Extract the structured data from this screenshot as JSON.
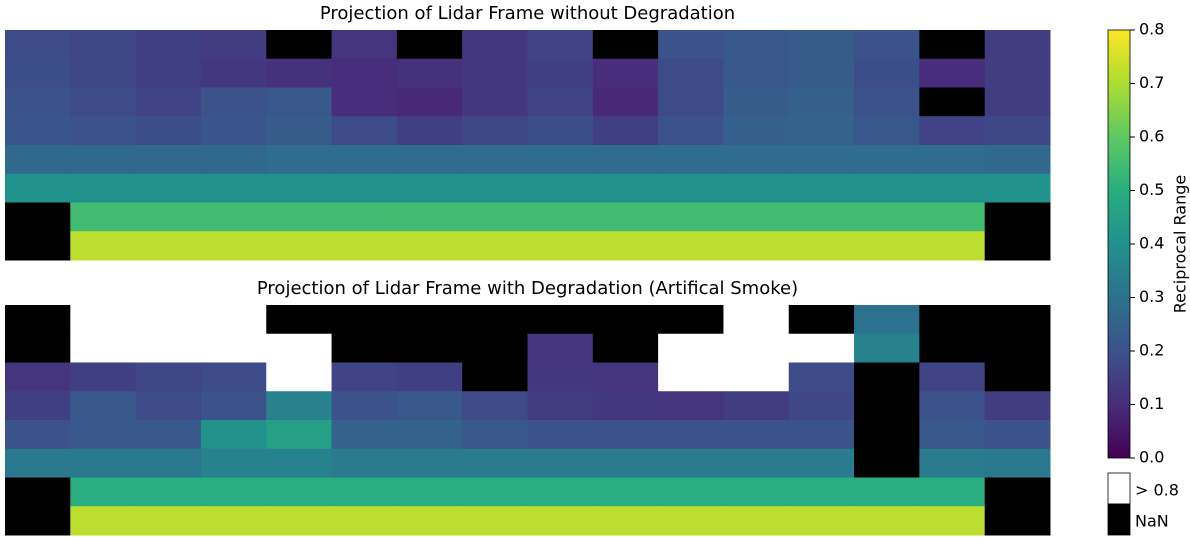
{
  "chart_data": {
    "type": "heatmap",
    "panels": [
      {
        "title": "Projection of Lidar Frame without Degradation",
        "values": [
          [
            0.18,
            0.17,
            0.15,
            0.14,
            null,
            0.12,
            null,
            0.13,
            0.16,
            null,
            0.2,
            0.22,
            0.23,
            0.2,
            null,
            0.14
          ],
          [
            0.19,
            0.17,
            0.15,
            0.13,
            0.11,
            0.1,
            0.11,
            0.13,
            0.15,
            0.1,
            0.18,
            0.22,
            0.23,
            0.19,
            0.1,
            0.14
          ],
          [
            0.2,
            0.18,
            0.16,
            0.2,
            0.22,
            0.1,
            0.09,
            0.13,
            0.16,
            0.09,
            0.18,
            0.23,
            0.24,
            0.2,
            null,
            0.14
          ],
          [
            0.21,
            0.2,
            0.19,
            0.21,
            0.23,
            0.18,
            0.15,
            0.17,
            0.19,
            0.15,
            0.2,
            0.24,
            0.25,
            0.22,
            0.16,
            0.17
          ],
          [
            0.27,
            0.27,
            0.27,
            0.27,
            0.28,
            0.28,
            0.28,
            0.28,
            0.28,
            0.28,
            0.28,
            0.28,
            0.28,
            0.28,
            0.28,
            0.27
          ],
          [
            0.4,
            0.4,
            0.4,
            0.4,
            0.4,
            0.4,
            0.4,
            0.4,
            0.4,
            0.4,
            0.4,
            0.4,
            0.4,
            0.4,
            0.4,
            0.4
          ],
          [
            null,
            0.55,
            0.55,
            0.55,
            0.55,
            0.55,
            0.55,
            0.55,
            0.55,
            0.55,
            0.55,
            0.55,
            0.55,
            0.55,
            0.55,
            null
          ],
          [
            null,
            0.72,
            0.72,
            0.72,
            0.72,
            0.72,
            0.72,
            0.72,
            0.72,
            0.72,
            0.72,
            0.72,
            0.72,
            0.72,
            0.72,
            null
          ]
        ]
      },
      {
        "title": "Projection of Lidar Frame with Degradation (Artifical Smoke)",
        "values": [
          [
            null,
            0.9,
            0.9,
            0.9,
            null,
            null,
            null,
            null,
            null,
            null,
            null,
            0.9,
            null,
            0.3,
            null,
            null
          ],
          [
            null,
            0.9,
            0.9,
            0.9,
            0.9,
            null,
            null,
            null,
            0.12,
            null,
            0.9,
            0.9,
            0.9,
            0.35,
            null,
            null
          ],
          [
            0.12,
            0.15,
            0.17,
            0.18,
            0.9,
            0.16,
            0.15,
            null,
            0.13,
            0.12,
            0.9,
            0.9,
            0.18,
            null,
            0.16,
            null
          ],
          [
            0.15,
            0.22,
            0.18,
            0.2,
            0.35,
            0.2,
            0.22,
            0.18,
            0.14,
            0.13,
            0.12,
            0.14,
            0.17,
            null,
            0.2,
            0.14
          ],
          [
            0.2,
            0.22,
            0.22,
            0.4,
            0.45,
            0.25,
            0.25,
            0.22,
            0.2,
            0.2,
            0.2,
            0.2,
            0.2,
            null,
            0.22,
            0.2
          ],
          [
            0.32,
            0.32,
            0.32,
            0.35,
            0.35,
            0.33,
            0.33,
            0.33,
            0.33,
            0.33,
            0.33,
            0.33,
            0.33,
            null,
            0.33,
            0.32
          ],
          [
            null,
            0.5,
            0.5,
            0.5,
            0.5,
            0.5,
            0.5,
            0.5,
            0.5,
            0.5,
            0.5,
            0.5,
            0.5,
            0.5,
            0.5,
            null
          ],
          [
            null,
            0.72,
            0.72,
            0.72,
            0.72,
            0.72,
            0.72,
            0.72,
            0.72,
            0.72,
            0.72,
            0.72,
            0.72,
            0.72,
            0.72,
            null
          ]
        ]
      }
    ],
    "colorbar": {
      "label": "Reciprocal Range",
      "lim": [
        0,
        0.8
      ],
      "ticks": [
        {
          "value": 0,
          "label": "0.0"
        },
        0.1,
        0.2,
        0.3,
        0.4,
        0.5,
        0.6,
        0.7,
        0.8
      ],
      "colormap": [
        "#440154",
        "#472d7b",
        "#3b528b",
        "#2c728e",
        "#21918c",
        "#28ae80",
        "#5ec962",
        "#addc30",
        "#fde725"
      ]
    },
    "legend": [
      {
        "label": "> 0.8",
        "color": "#ffffff"
      },
      {
        "label": "NaN",
        "color": "#000000"
      }
    ]
  }
}
